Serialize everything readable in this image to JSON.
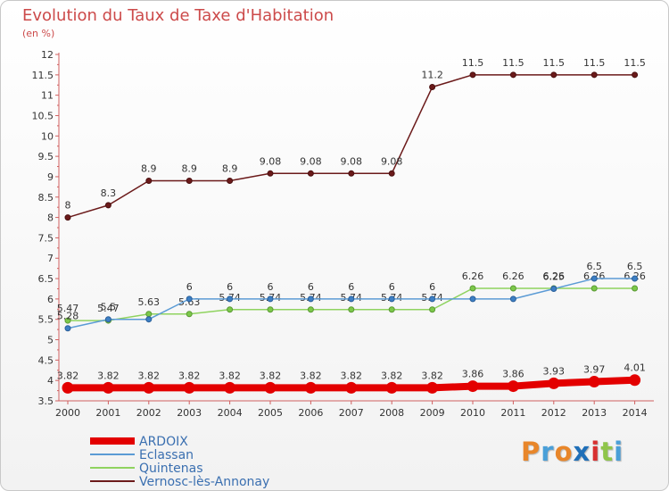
{
  "chart_data": {
    "type": "line",
    "title": "Evolution du Taux de Taxe d'Habitation",
    "subtitle": "(en %)",
    "x": [
      "2000",
      "2001",
      "2002",
      "2003",
      "2004",
      "2005",
      "2006",
      "2007",
      "2008",
      "2009",
      "2010",
      "2011",
      "2012",
      "2013",
      "2014"
    ],
    "ylim": [
      3.5,
      12
    ],
    "yticks": [
      "3.5",
      "4",
      "4.5",
      "5",
      "5.5",
      "6",
      "6.5",
      "7",
      "7.5",
      "8",
      "8.5",
      "9",
      "9.5",
      "10",
      "10.5",
      "11",
      "11.5",
      "12"
    ],
    "grid": false,
    "legend_position": "bottom-left",
    "series": [
      {
        "name": "ARDOIX",
        "color": "#e30000",
        "values": [
          3.82,
          3.82,
          3.82,
          3.82,
          3.82,
          3.82,
          3.82,
          3.82,
          3.82,
          3.82,
          3.86,
          3.86,
          3.93,
          3.97,
          4.01
        ],
        "labels": [
          "3.82",
          "3.82",
          "3.82",
          "3.82",
          "3.82",
          "3.82",
          "3.82",
          "3.82",
          "3.82",
          "3.82",
          "3.86",
          "3.86",
          "3.93",
          "3.97",
          "4.01"
        ]
      },
      {
        "name": "Eclassan",
        "color": "#5b9bd5",
        "values": [
          5.28,
          5.5,
          5.5,
          6,
          6,
          6,
          6,
          6,
          6,
          6,
          6,
          6,
          6.25,
          6.5,
          6.5
        ],
        "labels": [
          "5.28",
          "5.5",
          "",
          "6",
          "6",
          "6",
          "6",
          "6",
          "6",
          "6",
          "",
          "",
          "6.25",
          "6.5",
          "6.5"
        ]
      },
      {
        "name": "Quintenas",
        "color": "#8fd35f",
        "values": [
          5.47,
          5.47,
          5.63,
          5.63,
          5.74,
          5.74,
          5.74,
          5.74,
          5.74,
          5.74,
          6.26,
          6.26,
          6.26,
          6.26,
          6.26
        ],
        "labels": [
          "5.47",
          "5.47",
          "5.63",
          "5.63",
          "5.74",
          "5.74",
          "5.74",
          "5.74",
          "5.74",
          "5.74",
          "6.26",
          "6.26",
          "6.26",
          "6.26",
          "6.26"
        ]
      },
      {
        "name": "Vernosc-lès-Annonay",
        "color": "#6b1a1a",
        "values": [
          8,
          8.3,
          8.9,
          8.9,
          8.9,
          9.08,
          9.08,
          9.08,
          9.08,
          11.2,
          11.5,
          11.5,
          11.5,
          11.5,
          11.5
        ],
        "labels": [
          "8",
          "8.3",
          "8.9",
          "8.9",
          "8.9",
          "9.08",
          "9.08",
          "9.08",
          "9.08",
          "11.2",
          "11.5",
          "11.5",
          "11.5",
          "11.5",
          "11.5"
        ]
      }
    ]
  },
  "logo": {
    "text": "Proxiti",
    "colors": [
      "#e8862a",
      "#4a9fd8",
      "#e8862a",
      "#1f6fb8",
      "#d83030",
      "#8fc54a",
      "#4a9fd8"
    ]
  }
}
